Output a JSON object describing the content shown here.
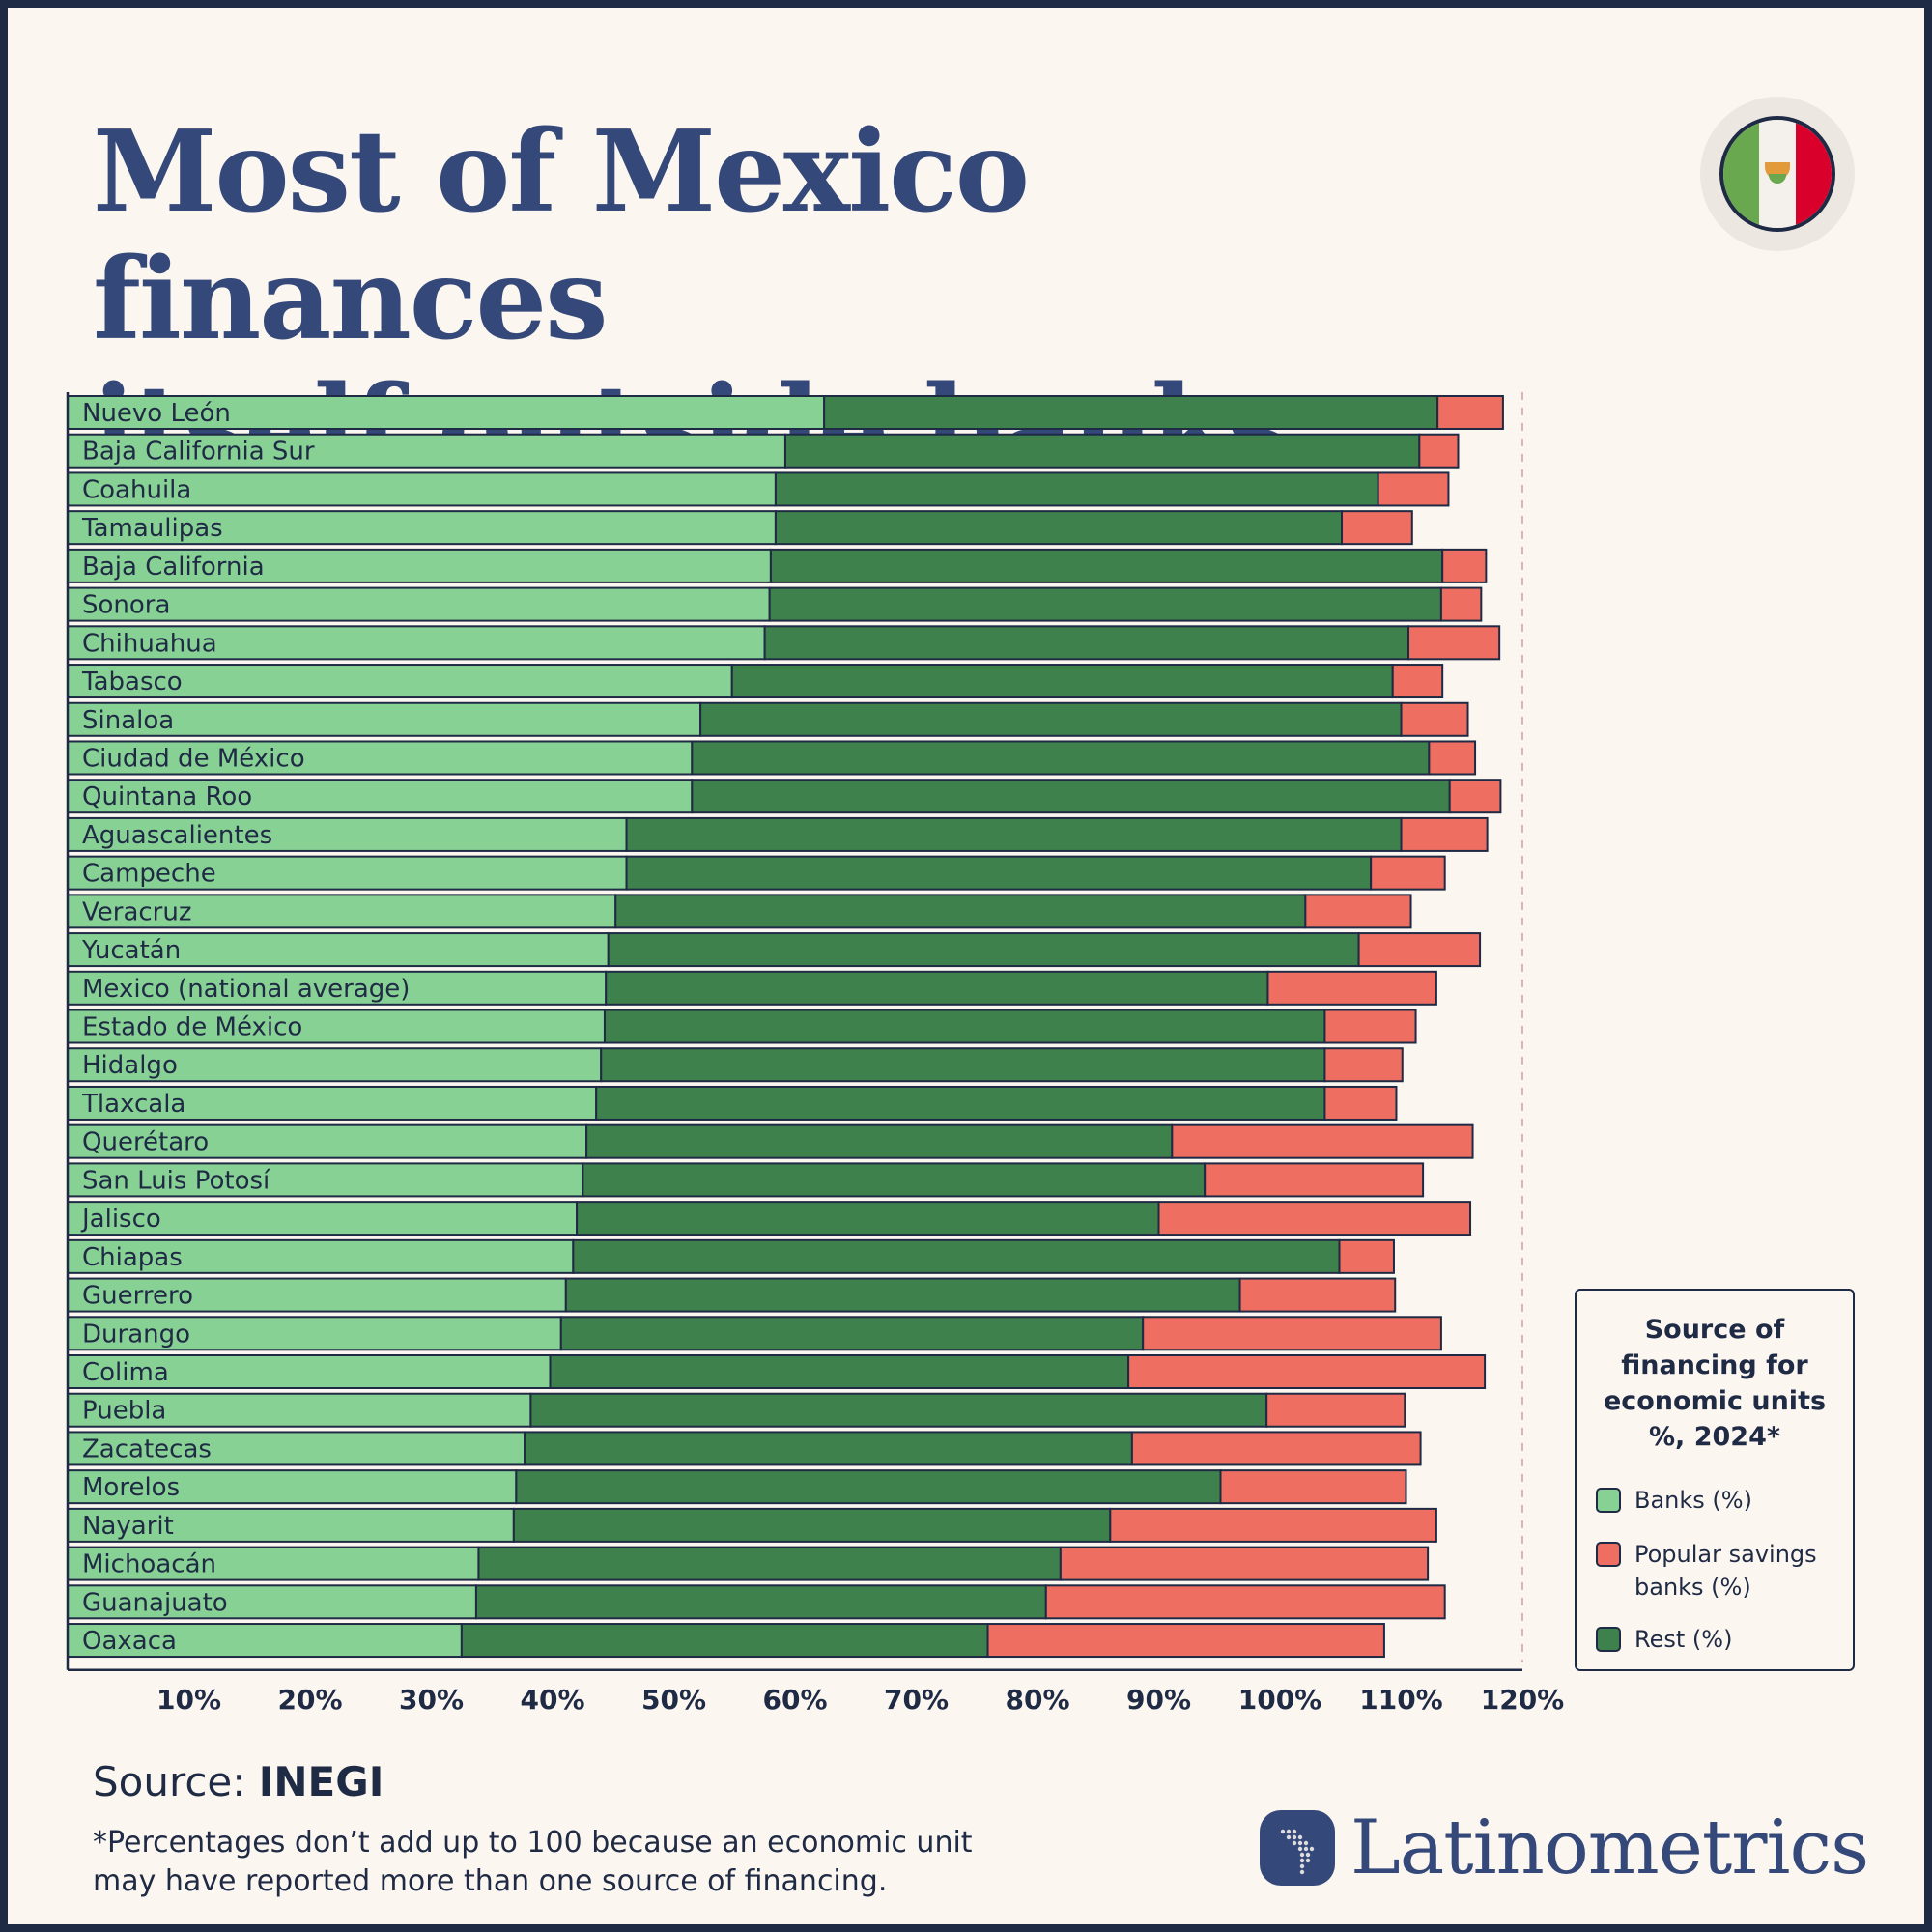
{
  "title_line1": "Most of Mexico finances",
  "title_line2": "itself outside banks",
  "legend": {
    "title": "Source of financing for economic units %, 2024*",
    "items": [
      {
        "label": "Banks (%)",
        "color": "#88d195"
      },
      {
        "label": "Popular savings banks (%)",
        "color": "#ee6e61"
      },
      {
        "label": "Rest (%)",
        "color": "#3e814c"
      }
    ]
  },
  "source": {
    "prefix": "Source: ",
    "name": "INEGI"
  },
  "footnote": "*Percentages don’t add up to 100 because an economic unit may have reported more than one source of financing.",
  "brand": "Latinometrics",
  "colors": {
    "banks": "#88d195",
    "rest": "#3e814c",
    "popular": "#ee6e61",
    "border": "#1f2a44",
    "title": "#34497a"
  },
  "chart_data": {
    "type": "bar",
    "orientation": "horizontal",
    "stacked": true,
    "xlim": [
      0,
      120
    ],
    "x_ticks": [
      "10%",
      "20%",
      "30%",
      "40%",
      "50%",
      "60%",
      "70%",
      "80%",
      "90%",
      "100%",
      "110%",
      "120%"
    ],
    "x_tick_values": [
      10,
      20,
      30,
      40,
      50,
      60,
      70,
      80,
      90,
      100,
      110,
      120
    ],
    "reference_line": 120,
    "categories": [
      "Nuevo León",
      "Baja California Sur",
      "Coahuila",
      "Tamaulipas",
      "Baja California",
      "Sonora",
      "Chihuahua",
      "Tabasco",
      "Sinaloa",
      "Ciudad de México",
      "Quintana Roo",
      "Aguascalientes",
      "Campeche",
      "Veracruz",
      "Yucatán",
      "Mexico (national average)",
      "Estado de México",
      "Hidalgo",
      "Tlaxcala",
      "Querétaro",
      "San Luis Potosí",
      "Jalisco",
      "Chiapas",
      "Guerrero",
      "Durango",
      "Colima",
      "Puebla",
      "Zacatecas",
      "Morelos",
      "Nayarit",
      "Michoacán",
      "Guanajuato",
      "Oaxaca"
    ],
    "series": [
      {
        "name": "Banks (%)",
        "values": [
          62.4,
          59.2,
          58.4,
          58.4,
          58.0,
          57.9,
          57.5,
          54.8,
          52.2,
          51.5,
          51.5,
          46.1,
          46.1,
          45.2,
          44.6,
          44.4,
          44.3,
          44.0,
          43.6,
          42.8,
          42.5,
          42.0,
          41.7,
          41.1,
          40.7,
          39.8,
          38.2,
          37.7,
          37.0,
          36.8,
          33.9,
          33.7,
          32.5
        ]
      },
      {
        "name": "Rest (%)",
        "values": [
          50.6,
          52.3,
          49.7,
          46.7,
          55.4,
          55.4,
          53.1,
          54.5,
          57.8,
          60.8,
          62.5,
          63.9,
          61.4,
          56.9,
          61.9,
          54.6,
          59.4,
          59.7,
          60.1,
          48.3,
          51.3,
          48.0,
          63.2,
          55.6,
          48.0,
          47.7,
          60.7,
          50.1,
          58.1,
          49.2,
          48.0,
          47.0,
          43.4
        ]
      },
      {
        "name": "Popular savings banks (%)",
        "values": [
          5.4,
          3.2,
          5.8,
          5.8,
          3.6,
          3.3,
          7.5,
          4.1,
          5.5,
          3.8,
          4.2,
          7.1,
          6.1,
          8.7,
          10.0,
          13.9,
          7.5,
          6.4,
          5.9,
          24.8,
          18.0,
          25.7,
          4.5,
          12.8,
          24.6,
          29.4,
          11.4,
          23.8,
          15.3,
          26.9,
          30.3,
          32.9,
          32.7
        ]
      }
    ]
  }
}
